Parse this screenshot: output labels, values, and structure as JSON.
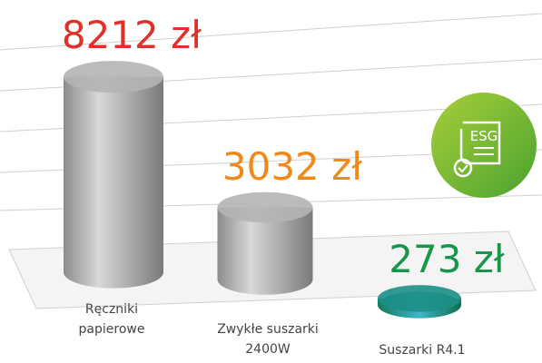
{
  "chart_data": {
    "type": "bar3d",
    "categories": [
      "Ręczniki papierowe",
      "Zwykłe suszarki 2400W",
      "Suszarki R4.1"
    ],
    "values": [
      8212,
      3032,
      273
    ],
    "value_labels": [
      "8212 zł",
      "3032 zł",
      "273 zł"
    ],
    "value_label_colors": [
      "#e0302a",
      "#f0891a",
      "#17964a"
    ],
    "colors": [
      "#b4b4b4",
      "#b4b4b4",
      "#1c8f86"
    ],
    "ylim": [
      0,
      9000
    ],
    "badge": "ESG"
  }
}
